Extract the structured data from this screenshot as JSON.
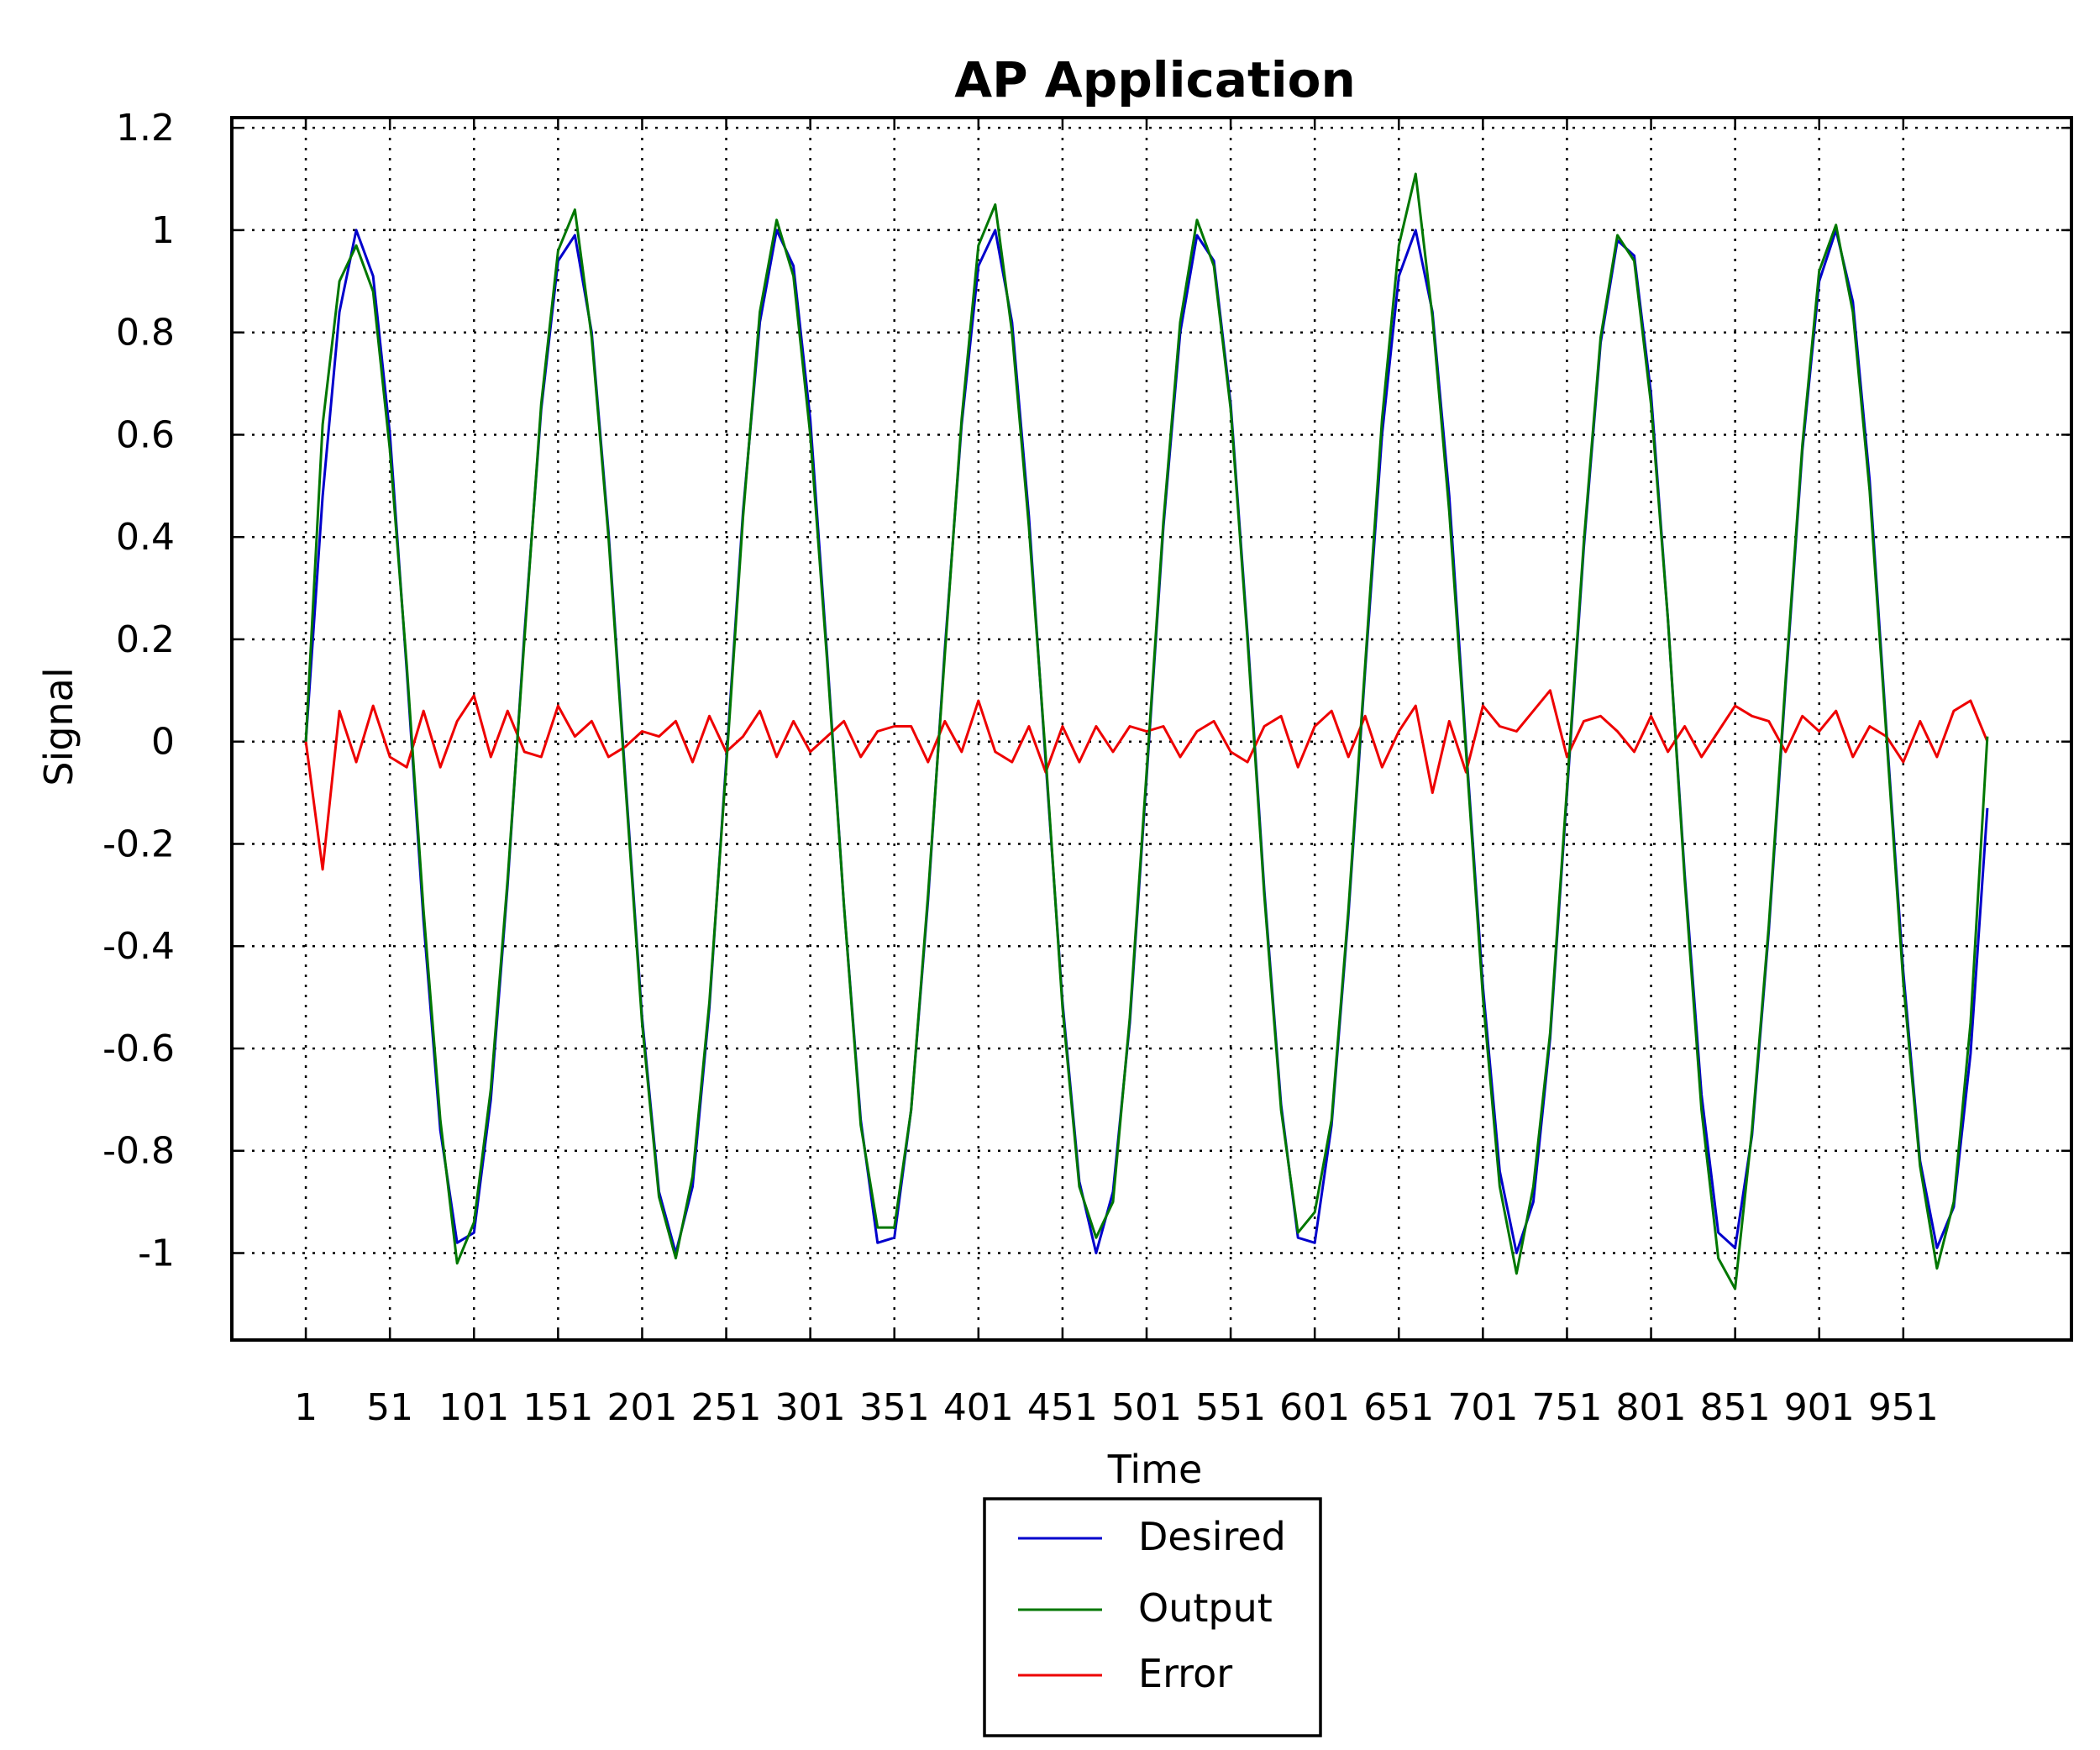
{
  "chart_data": {
    "type": "line",
    "title": "AP Application",
    "xlabel": "Time",
    "ylabel": "Signal",
    "xlim": [
      -43,
      1051
    ],
    "ylim": [
      -1.17,
      1.22
    ],
    "x_ticks": [
      1,
      51,
      101,
      151,
      201,
      251,
      301,
      351,
      401,
      451,
      501,
      551,
      601,
      651,
      701,
      751,
      801,
      851,
      901,
      951
    ],
    "y_ticks": [
      1.2,
      1,
      0.8,
      0.6,
      0.4,
      0.2,
      0,
      -0.2,
      -0.4,
      -0.6,
      -0.8,
      -1
    ],
    "y_tick_labels": [
      "1.2",
      "1",
      "0.8",
      "0.6",
      "0.4",
      "0.2",
      "0",
      "-0.2",
      "-0.4",
      "-0.6",
      "-0.8",
      "-1"
    ],
    "grid": true,
    "legend_position": "bottom-center, below axes",
    "x": [
      1,
      11,
      21,
      31,
      41,
      51,
      61,
      71,
      81,
      91,
      101,
      111,
      121,
      131,
      141,
      151,
      161,
      171,
      181,
      191,
      201,
      211,
      221,
      231,
      241,
      251,
      261,
      271,
      281,
      291,
      301,
      311,
      321,
      331,
      341,
      351,
      361,
      371,
      381,
      391,
      401,
      411,
      421,
      431,
      441,
      451,
      461,
      471,
      481,
      491,
      501,
      511,
      521,
      531,
      541,
      551,
      561,
      571,
      581,
      591,
      601,
      611,
      621,
      631,
      641,
      651,
      661,
      671,
      681,
      691,
      701,
      711,
      721,
      731,
      741,
      751,
      761,
      771,
      781,
      791,
      801,
      811,
      821,
      831,
      841,
      851,
      861,
      871,
      881,
      891,
      901,
      911,
      921,
      931,
      941,
      951,
      961,
      971,
      981,
      991,
      1001
    ],
    "series": [
      {
        "name": "Desired",
        "color": "#0000cc",
        "values": [
          0.0,
          0.48,
          0.84,
          1.0,
          0.91,
          0.6,
          0.14,
          -0.35,
          -0.76,
          -0.98,
          -0.96,
          -0.7,
          -0.28,
          0.21,
          0.65,
          0.94,
          0.99,
          0.8,
          0.41,
          -0.07,
          -0.54,
          -0.88,
          -1.0,
          -0.87,
          -0.52,
          -0.04,
          0.45,
          0.82,
          1.0,
          0.93,
          0.63,
          0.17,
          -0.32,
          -0.74,
          -0.98,
          -0.97,
          -0.72,
          -0.31,
          0.18,
          0.62,
          0.93,
          1.0,
          0.82,
          0.44,
          -0.04,
          -0.51,
          -0.86,
          -1.0,
          -0.88,
          -0.55,
          -0.07,
          0.42,
          0.8,
          0.99,
          0.94,
          0.66,
          0.21,
          -0.29,
          -0.71,
          -0.97,
          -0.98,
          -0.75,
          -0.34,
          0.14,
          0.6,
          0.91,
          1.0,
          0.84,
          0.48,
          -0.01,
          -0.48,
          -0.84,
          -1.0,
          -0.9,
          -0.58,
          -0.1,
          0.38,
          0.78,
          0.98,
          0.95,
          0.68,
          0.24,
          -0.26,
          -0.69,
          -0.96,
          -0.99,
          -0.77,
          -0.37,
          0.11,
          0.57,
          0.9,
          1.0,
          0.86,
          0.51,
          0.02,
          -0.45,
          -0.82,
          -0.99,
          -0.91,
          -0.61,
          -0.13
        ]
      },
      {
        "name": "Output",
        "color": "#007700",
        "values": [
          0.0,
          0.62,
          0.9,
          0.97,
          0.88,
          0.57,
          0.15,
          -0.33,
          -0.74,
          -1.02,
          -0.94,
          -0.68,
          -0.27,
          0.2,
          0.66,
          0.96,
          1.04,
          0.79,
          0.4,
          -0.08,
          -0.55,
          -0.89,
          -1.01,
          -0.85,
          -0.51,
          -0.05,
          0.44,
          0.84,
          1.02,
          0.91,
          0.6,
          0.16,
          -0.32,
          -0.75,
          -0.95,
          -0.95,
          -0.72,
          -0.3,
          0.17,
          0.63,
          0.97,
          1.05,
          0.8,
          0.42,
          -0.03,
          -0.52,
          -0.87,
          -0.97,
          -0.9,
          -0.54,
          -0.06,
          0.43,
          0.82,
          1.02,
          0.93,
          0.65,
          0.2,
          -0.3,
          -0.72,
          -0.96,
          -0.92,
          -0.74,
          -0.33,
          0.15,
          0.63,
          0.97,
          1.11,
          0.83,
          0.45,
          -0.02,
          -0.5,
          -0.87,
          -1.04,
          -0.87,
          -0.57,
          -0.09,
          0.39,
          0.79,
          0.99,
          0.94,
          0.66,
          0.24,
          -0.27,
          -0.72,
          -1.01,
          -1.07,
          -0.76,
          -0.36,
          0.12,
          0.58,
          0.92,
          1.01,
          0.84,
          0.49,
          0.01,
          -0.47,
          -0.83,
          -1.03,
          -0.9,
          -0.55,
          0.01
        ]
      },
      {
        "name": "Error",
        "color": "#ee0000",
        "values": [
          0.0,
          -0.25,
          0.06,
          -0.04,
          0.07,
          -0.03,
          -0.05,
          0.06,
          -0.05,
          0.04,
          0.09,
          -0.03,
          0.06,
          -0.02,
          -0.03,
          0.07,
          0.01,
          0.04,
          -0.03,
          -0.01,
          0.02,
          0.01,
          0.04,
          -0.04,
          0.05,
          -0.02,
          0.01,
          0.06,
          -0.03,
          0.04,
          -0.02,
          0.01,
          0.04,
          -0.03,
          0.02,
          0.03,
          0.03,
          -0.04,
          0.04,
          -0.02,
          0.08,
          -0.02,
          -0.04,
          0.03,
          -0.06,
          0.03,
          -0.04,
          0.03,
          -0.02,
          0.03,
          0.02,
          0.03,
          -0.03,
          0.02,
          0.04,
          -0.02,
          -0.04,
          0.03,
          0.05,
          -0.05,
          0.03,
          0.06,
          -0.03,
          0.05,
          -0.05,
          0.02,
          0.07,
          -0.1,
          0.04,
          -0.06,
          0.07,
          0.03,
          0.02,
          0.06,
          0.1,
          -0.03,
          0.04,
          0.05,
          0.02,
          -0.02,
          0.05,
          -0.02,
          0.03,
          -0.03,
          0.02,
          0.07,
          0.05,
          0.04,
          -0.02,
          0.05,
          0.02,
          0.06,
          -0.03,
          0.03,
          0.01,
          -0.04,
          0.04,
          -0.03,
          0.06,
          0.08,
          0.0
        ]
      }
    ]
  }
}
